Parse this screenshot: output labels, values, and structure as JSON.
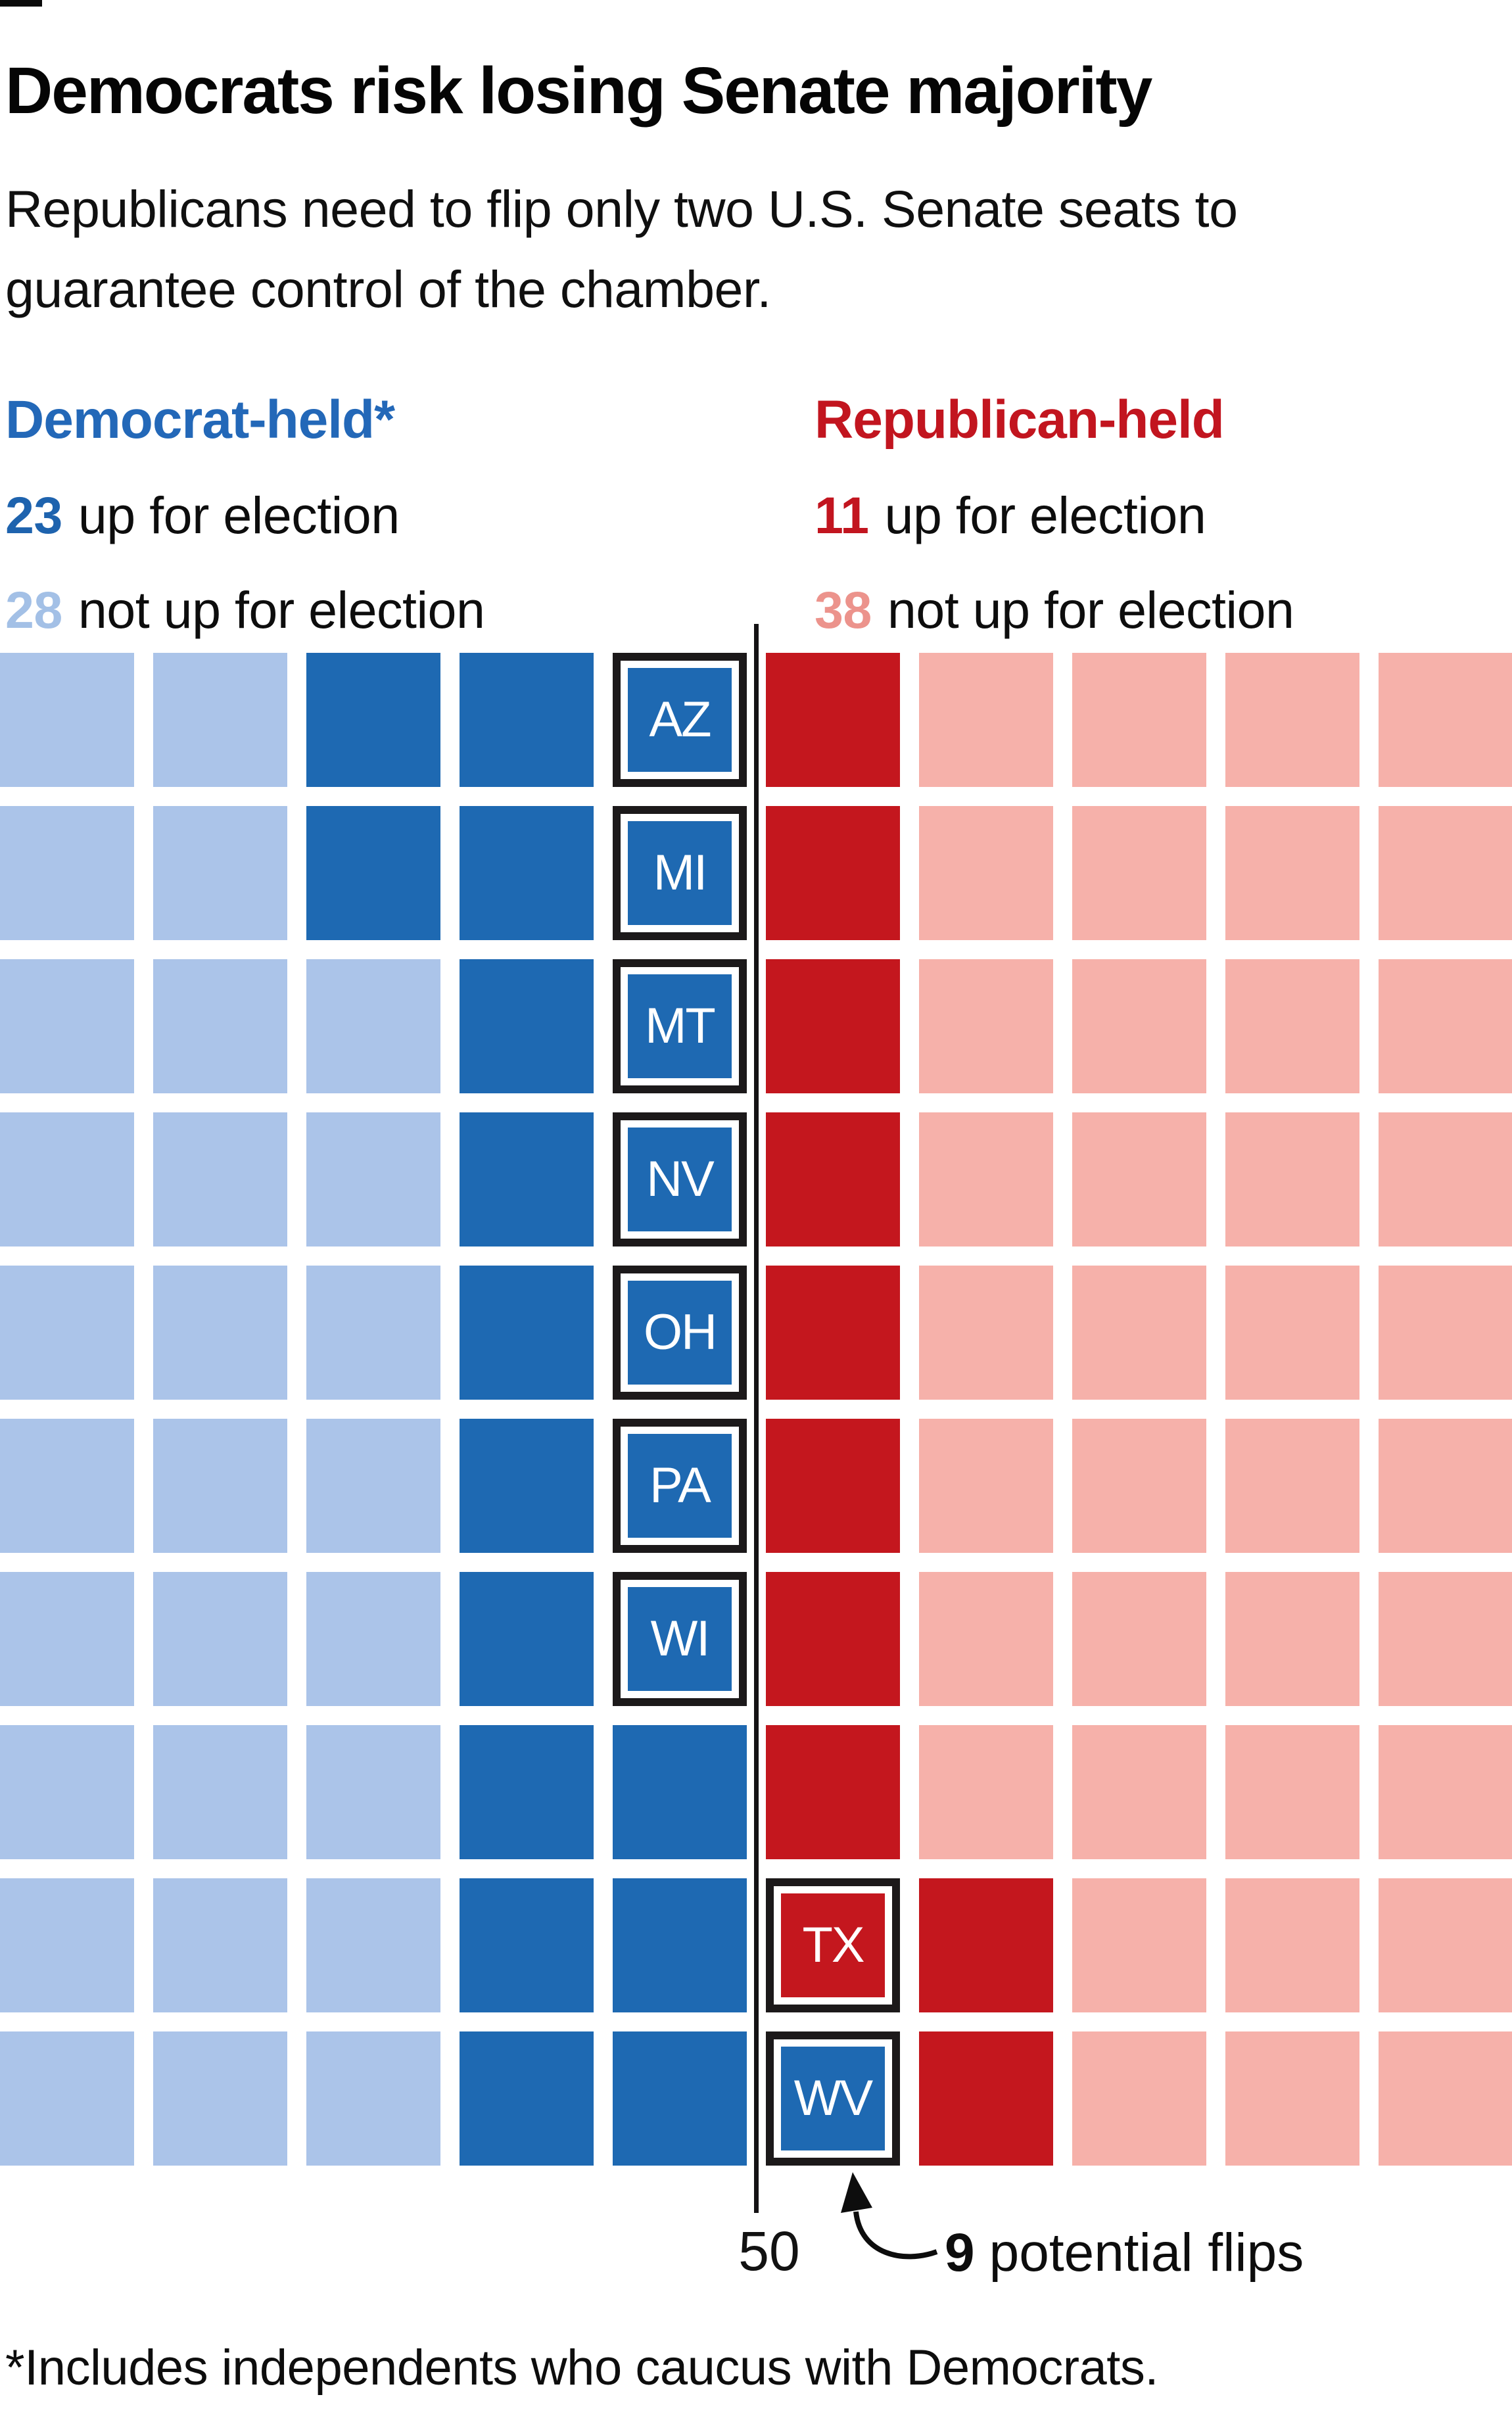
{
  "title": "Democrats risk losing Senate majority",
  "subtitle": "Republicans need to flip only two U.S. Senate seats to guarantee control of the chamber.",
  "legend": {
    "dem": {
      "header": "Democrat-held*",
      "up_count": "23",
      "up_label": "up for election",
      "not_up_count": "28",
      "not_up_label": "not up for election"
    },
    "rep": {
      "header": "Republican-held",
      "up_count": "11",
      "up_label": "up for election",
      "not_up_count": "38",
      "not_up_label": "not up for election"
    }
  },
  "annotations": {
    "majority_label": "50",
    "flips_count": "9",
    "flips_label": "potential flips",
    "footnote": "*Includes independents who caucus with Democrats."
  },
  "colors": {
    "dem_up": "#1e69b2",
    "dem_not_up": "#abc4e9",
    "rep_up": "#c4171e",
    "rep_not_up": "#f6b1aa",
    "dem_header": "#2368b8",
    "rep_header": "#c2151f",
    "dem_up_number": "#1e63ae",
    "dem_not_up_number": "#a3c0e6",
    "rep_up_number": "#c2151f",
    "rep_not_up_number": "#ec938c",
    "outline_black": "#1c191a",
    "majority_line": "#141214"
  },
  "chart_data": {
    "type": "waffle",
    "title": "Democrats risk losing Senate majority",
    "columns": 10,
    "rows": 10,
    "total_seats": 100,
    "majority_marker": 50,
    "dem_held_total": 51,
    "dem_up_for_election": 23,
    "dem_not_up_for_election": 28,
    "rep_held_total": 49,
    "rep_up_for_election": 11,
    "rep_not_up_for_election": 38,
    "potential_flips": 9,
    "flip_states": [
      "AZ",
      "MI",
      "MT",
      "NV",
      "OH",
      "PA",
      "WI",
      "TX",
      "WV"
    ],
    "rep_held_flip_states": [
      "TX"
    ],
    "cell_codes": {
      "LB": "Democrat-held, not up for election",
      "DB": "Democrat-held, up for election",
      "DR": "Republican-held, up for election",
      "PK": "Republican-held, not up for election",
      "state_abbreviation": "highlighted potential flip seat"
    },
    "grid_rows": [
      [
        "LB",
        "LB",
        "DB",
        "DB",
        "AZ",
        "DR",
        "PK",
        "PK",
        "PK",
        "PK"
      ],
      [
        "LB",
        "LB",
        "DB",
        "DB",
        "MI",
        "DR",
        "PK",
        "PK",
        "PK",
        "PK"
      ],
      [
        "LB",
        "LB",
        "LB",
        "DB",
        "MT",
        "DR",
        "PK",
        "PK",
        "PK",
        "PK"
      ],
      [
        "LB",
        "LB",
        "LB",
        "DB",
        "NV",
        "DR",
        "PK",
        "PK",
        "PK",
        "PK"
      ],
      [
        "LB",
        "LB",
        "LB",
        "DB",
        "OH",
        "DR",
        "PK",
        "PK",
        "PK",
        "PK"
      ],
      [
        "LB",
        "LB",
        "LB",
        "DB",
        "PA",
        "DR",
        "PK",
        "PK",
        "PK",
        "PK"
      ],
      [
        "LB",
        "LB",
        "LB",
        "DB",
        "WI",
        "DR",
        "PK",
        "PK",
        "PK",
        "PK"
      ],
      [
        "LB",
        "LB",
        "LB",
        "DB",
        "DB",
        "DR",
        "PK",
        "PK",
        "PK",
        "PK"
      ],
      [
        "LB",
        "LB",
        "LB",
        "DB",
        "DB",
        "TX",
        "DR",
        "PK",
        "PK",
        "PK"
      ],
      [
        "LB",
        "LB",
        "LB",
        "DB",
        "DB",
        "WV",
        "DR",
        "PK",
        "PK",
        "PK"
      ]
    ]
  }
}
